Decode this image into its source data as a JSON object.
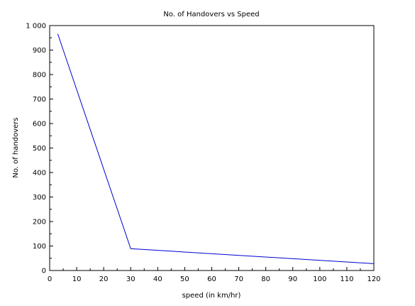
{
  "chart_data": {
    "type": "line",
    "title": "No. of Handovers vs Speed",
    "xlabel": "speed (in km/hr)",
    "ylabel": "No. of handovers",
    "xlim": [
      0,
      120
    ],
    "ylim": [
      0,
      1000
    ],
    "xticks": [
      0,
      10,
      20,
      30,
      40,
      50,
      60,
      70,
      80,
      90,
      100,
      110,
      120
    ],
    "yticks": [
      0,
      100,
      200,
      300,
      400,
      500,
      600,
      700,
      800,
      900,
      1000
    ],
    "xtick_labels": [
      "0",
      "10",
      "20",
      "30",
      "40",
      "50",
      "60",
      "70",
      "80",
      "90",
      "100",
      "110",
      "120"
    ],
    "ytick_labels": [
      "0",
      "100",
      "200",
      "300",
      "400",
      "500",
      "600",
      "700",
      "800",
      "900",
      "1 000"
    ],
    "grid": false,
    "series": [
      {
        "x": [
          3,
          30,
          120
        ],
        "y": [
          966,
          89,
          28
        ],
        "color": "#0000cc"
      }
    ]
  }
}
